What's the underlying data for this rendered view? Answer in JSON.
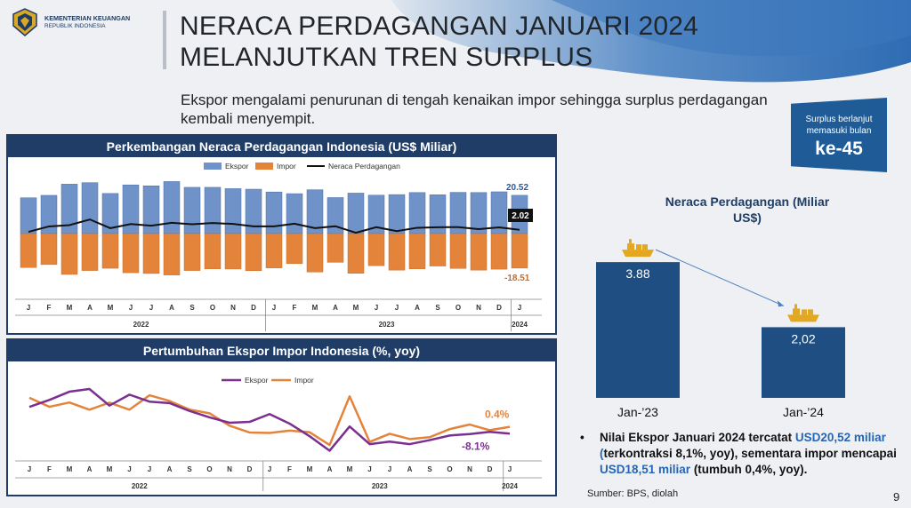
{
  "header": {
    "org_name": "KEMENTERIAN KEUANGAN",
    "org_sub": "REPUBLIK INDONESIA",
    "title_line1": "NERACA PERDAGANGAN JANUARI 2024",
    "title_line2": "MELANJUTKAN TREN SURPLUS",
    "subtitle": "Ekspor mengalami penurunan di tengah kenaikan impor sehingga surplus perdagangan kembali menyempit."
  },
  "badge": {
    "line1": "Surplus berlanjut",
    "line2": "memasuki bulan",
    "value": "ke-45"
  },
  "colors": {
    "navy": "#1f3d66",
    "export_bar": "#6f93c9",
    "import_bar": "#e4843b",
    "balance": "#111111",
    "export_line": "#7b2f8e",
    "import_line": "#e4843b",
    "right_bar": "#1f4e82"
  },
  "chart_data": [
    {
      "type": "bar",
      "title": "Perkembangan Neraca Perdagangan Indonesia (US$ Miliar)",
      "legend": [
        "Ekspor",
        "Impor",
        "Neraca Perdagangan"
      ],
      "categories": [
        "J",
        "F",
        "M",
        "A",
        "M",
        "J",
        "J",
        "A",
        "S",
        "O",
        "N",
        "D",
        "J",
        "F",
        "M",
        "A",
        "M",
        "J",
        "J",
        "A",
        "S",
        "O",
        "N",
        "D",
        "J"
      ],
      "year_labels": [
        "2022",
        "2023",
        "2024"
      ],
      "series": [
        {
          "name": "Ekspor",
          "values": [
            19.2,
            20.5,
            26.5,
            27.3,
            21.5,
            26.1,
            25.6,
            27.9,
            24.8,
            24.8,
            24.1,
            23.8,
            22.3,
            21.4,
            23.5,
            19.3,
            21.7,
            20.6,
            20.9,
            22.0,
            20.8,
            22.1,
            22.0,
            22.4,
            20.52
          ]
        },
        {
          "name": "Impor",
          "values": [
            -18.2,
            -16.6,
            -21.9,
            -19.8,
            -18.6,
            -21.0,
            -21.4,
            -22.2,
            -19.8,
            -18.9,
            -19.0,
            -19.9,
            -18.4,
            -16.1,
            -20.6,
            -15.4,
            -21.3,
            -17.2,
            -19.6,
            -18.9,
            -17.4,
            -18.7,
            -19.6,
            -19.1,
            -18.51
          ]
        },
        {
          "name": "Neraca Perdagangan",
          "values": [
            0.93,
            3.83,
            4.53,
            7.56,
            2.9,
            5.09,
            4.23,
            5.76,
            4.99,
            5.67,
            5.16,
            3.89,
            3.88,
            5.29,
            2.91,
            3.94,
            0.44,
            3.45,
            1.31,
            3.12,
            3.42,
            3.47,
            2.41,
            3.31,
            2.02
          ]
        }
      ],
      "annotations": {
        "export_last": "20.52",
        "balance_last": "2.02",
        "import_last": "-18.51"
      },
      "ylim": [
        -23,
        29
      ]
    },
    {
      "type": "line",
      "title": "Pertumbuhan Ekspor Impor Indonesia (%, yoy)",
      "legend": [
        "Ekspor",
        "Impor"
      ],
      "categories": [
        "J",
        "F",
        "M",
        "A",
        "M",
        "J",
        "J",
        "A",
        "S",
        "O",
        "N",
        "D",
        "J",
        "F",
        "M",
        "A",
        "M",
        "J",
        "J",
        "A",
        "S",
        "O",
        "N",
        "D",
        "J"
      ],
      "year_labels": [
        "2022",
        "2023",
        "2024"
      ],
      "series": [
        {
          "name": "Ekspor",
          "values": [
            25.3,
            34.1,
            44.4,
            47.8,
            27.0,
            40.7,
            32.0,
            30.2,
            20.3,
            12.3,
            5.6,
            6.6,
            16.4,
            4.5,
            -11.3,
            -29.4,
            0.9,
            -21.2,
            -18.0,
            -21.2,
            -16.2,
            -10.4,
            -8.6,
            -5.8,
            -8.1
          ]
        },
        {
          "name": "Impor",
          "values": [
            36.8,
            25.5,
            30.9,
            21.9,
            30.7,
            21.9,
            39.9,
            32.8,
            22.0,
            17.4,
            1.9,
            -6.6,
            -7.2,
            -4.3,
            -6.3,
            -22.3,
            38.6,
            -18.4,
            -8.3,
            -14.8,
            -12.5,
            -2.4,
            3.3,
            -3.8,
            0.4
          ]
        }
      ],
      "annotations": {
        "import_last": "0.4%",
        "export_last": "-8.1%"
      },
      "ylim": [
        -35,
        55
      ]
    },
    {
      "type": "bar",
      "title": "Neraca Perdagangan (Miliar US$)",
      "categories": [
        "Jan-’23",
        "Jan-’24"
      ],
      "values": [
        3.88,
        2.02
      ],
      "value_labels": [
        "3.88",
        "2,02"
      ],
      "ylim": [
        0,
        4.5
      ]
    }
  ],
  "bullet": {
    "part1": "Nilai Ekspor Januari 2024 tercatat ",
    "hl1": "USD20,52 miliar (",
    "part2": "terkontraksi 8,1%, yoy), sementara impor mencapai ",
    "hl2": "USD18,51 miliar",
    "part3": " (tumbuh 0,4%, yoy)."
  },
  "source": "Sumber: BPS, diolah",
  "page_number": "9"
}
